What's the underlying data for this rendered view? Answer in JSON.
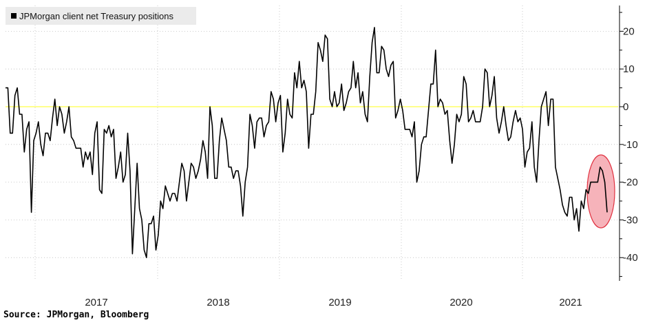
{
  "legend": {
    "label": "JPMorgan client net Treasury positions"
  },
  "source": "Source: JPMorgan, Bloomberg",
  "colors": {
    "line": "#000000",
    "zero_line": "#ffff66",
    "highlight_fill": "#f4a6ae",
    "highlight_stroke": "#e0303f",
    "grid": "#bbbbbb"
  },
  "chart_data": {
    "type": "line",
    "title": "",
    "xlabel": "",
    "ylabel": "",
    "x_ticks": [
      "2017",
      "2018",
      "2019",
      "2020",
      "2021"
    ],
    "y_ticks": [
      20,
      10,
      0,
      -10,
      -20,
      -30,
      -40
    ],
    "ylim": [
      -46,
      27
    ],
    "y_axis_side": "right",
    "grid": "dotted horizontal and vertical",
    "highlighted_region": "final weeks (2021, ~Apr-May) circled in red",
    "series": [
      {
        "name": "JPMorgan client net Treasury positions",
        "values": [
          5,
          5,
          -7,
          -7,
          3,
          5,
          -2,
          -2,
          -12,
          -6,
          -4,
          -28,
          -9,
          -7,
          -4,
          -10,
          -13,
          -7,
          -7,
          -9,
          -3,
          2,
          -5,
          0,
          -2,
          -7,
          -4,
          0,
          -8,
          -9,
          -11,
          -11,
          -11,
          -16,
          -12,
          -14,
          -12,
          -18,
          -7,
          -4,
          -22,
          -23,
          -6,
          -7,
          -5,
          -8,
          -6,
          -19,
          -16,
          -12,
          -20,
          -18,
          -7,
          -17,
          -39,
          -27,
          -15,
          -27,
          -30,
          -38,
          -40,
          -31,
          -31,
          -29,
          -38,
          -34,
          -25,
          -27,
          -21,
          -23,
          -25,
          -23,
          -23,
          -25,
          -20,
          -15,
          -17,
          -25,
          -20,
          -15,
          -16,
          -19,
          -17,
          -14,
          -9,
          -12,
          -19,
          0,
          -5,
          -19,
          -19,
          -9,
          -3,
          -6,
          -9,
          -16,
          -16,
          -19,
          -17,
          -17,
          -21,
          -29,
          -20,
          -16,
          -2,
          -5,
          -11,
          -4,
          -3,
          -3,
          -8,
          -5,
          -4,
          4,
          2,
          -4,
          1,
          3,
          -12,
          -7,
          2,
          -2,
          -3,
          9,
          5,
          12,
          5,
          7,
          4,
          -11,
          -2,
          -2,
          4,
          17,
          15,
          12,
          19,
          18,
          2,
          0,
          4,
          0,
          1,
          6,
          -1,
          1,
          4,
          5,
          12,
          5,
          9,
          1,
          4,
          -2,
          -4,
          8,
          17,
          21,
          9,
          9,
          16,
          15,
          10,
          8,
          11,
          12,
          -3,
          -1,
          2,
          -1,
          -6,
          -6,
          -6,
          -8,
          -4,
          -20,
          -17,
          -10,
          -8,
          -8,
          -1,
          6,
          6,
          15,
          0,
          2,
          1,
          -2,
          -1,
          -9,
          -15,
          -10,
          -2,
          -4,
          -2,
          8,
          6,
          -4,
          -3,
          -1,
          -4,
          -4,
          -4,
          0,
          10,
          9,
          0,
          3,
          8,
          -3,
          -7,
          -4,
          0,
          -5,
          -9,
          -8,
          -4,
          -1,
          -4,
          -3,
          -6,
          -16,
          -12,
          -11,
          -4,
          -16,
          -20,
          -9,
          0,
          2,
          4,
          -5,
          2,
          2,
          -16,
          -19,
          -22,
          -26,
          -28,
          -29,
          -24,
          -24,
          -30,
          -27,
          -33,
          -25,
          -27,
          -22,
          -23,
          -20,
          -20,
          -20,
          -20,
          -16,
          -17,
          -20,
          -28
        ]
      }
    ]
  }
}
